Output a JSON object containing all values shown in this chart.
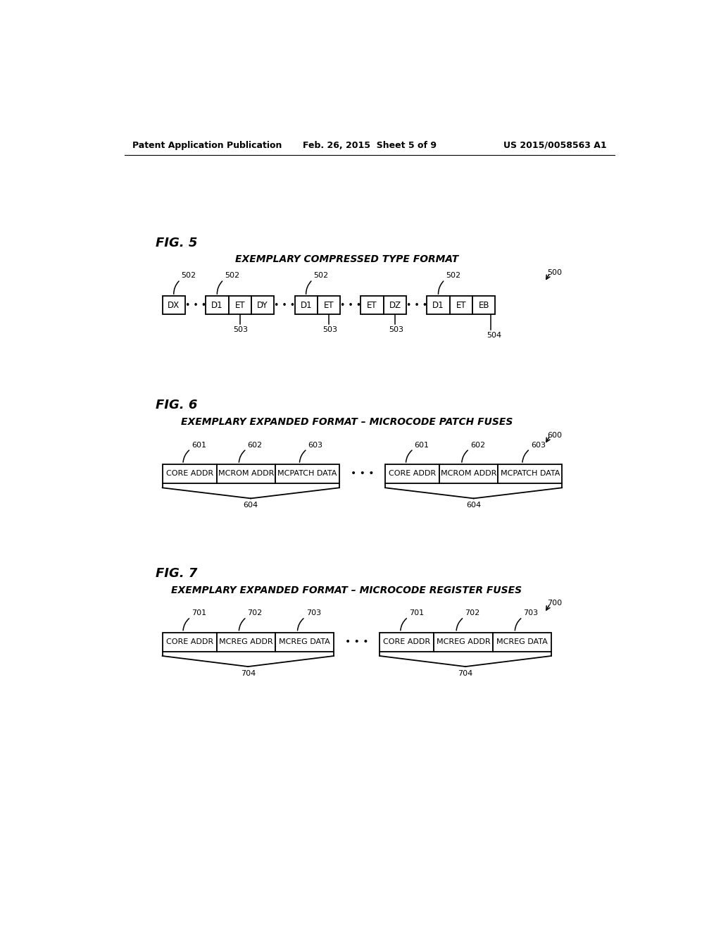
{
  "header_left": "Patent Application Publication",
  "header_mid": "Feb. 26, 2015  Sheet 5 of 9",
  "header_right": "US 2015/0058563 A1",
  "fig5_label": "FIG. 5",
  "fig5_title": "EXEMPLARY COMPRESSED TYPE FORMAT",
  "fig5_ref": "500",
  "fig6_label": "FIG. 6",
  "fig6_title": "EXEMPLARY EXPANDED FORMAT – MICROCODE PATCH FUSES",
  "fig6_ref": "600",
  "fig7_label": "FIG. 7",
  "fig7_title": "EXEMPLARY EXPANDED FORMAT – MICROCODE REGISTER FUSES",
  "fig7_ref": "700",
  "bg_color": "#ffffff",
  "box_color": "#000000",
  "text_color": "#000000"
}
